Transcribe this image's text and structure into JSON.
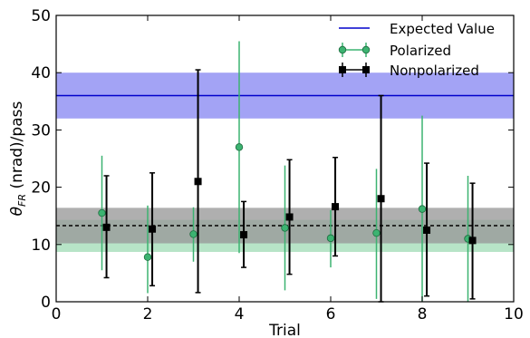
{
  "chart_data": {
    "type": "scatter",
    "xlabel": "Trial",
    "ylabel_symbol": "θ",
    "ylabel_subscript": "FR",
    "ylabel_rest": " (nrad)/pass",
    "xlim": [
      0,
      10
    ],
    "ylim": [
      0,
      50
    ],
    "xticks": [
      "0",
      "2",
      "4",
      "6",
      "8",
      "10"
    ],
    "yticks": [
      "0",
      "10",
      "20",
      "30",
      "40",
      "50"
    ],
    "grid": false,
    "legend_position": "top-right",
    "colors": {
      "expected": "#0000cc",
      "expected_band": "#a3a3f5",
      "polarized": "#3cb371",
      "polarized_band": "#b7e4c7",
      "nonpolarized": "#000000",
      "nonpolarized_band": "#999999"
    },
    "expected_value": {
      "name": "Expected Value",
      "y": 36,
      "band": [
        32,
        40
      ]
    },
    "mean_line": {
      "y": 13.3
    },
    "polarized_band": [
      8.7,
      14.3
    ],
    "nonpolarized_band": [
      10.2,
      16.4
    ],
    "series": [
      {
        "name": "Polarized",
        "x": [
          1,
          2,
          3,
          4,
          5,
          6,
          7,
          8,
          9
        ],
        "y": [
          15.5,
          7.8,
          11.8,
          27,
          12.9,
          11.1,
          12,
          16.2,
          11
        ],
        "yerr_low": [
          5.5,
          1.5,
          7,
          8.5,
          2,
          6,
          0.5,
          0,
          0
        ],
        "yerr_high": [
          25.5,
          16.8,
          16.5,
          45.5,
          23.8,
          16,
          23.2,
          32.5,
          22
        ]
      },
      {
        "name": "Nonpolarized",
        "x": [
          1.1,
          2.1,
          3.1,
          4.1,
          5.1,
          6.1,
          7.1,
          8.1,
          9.1
        ],
        "y": [
          13,
          12.7,
          21,
          11.7,
          14.8,
          16.6,
          18,
          12.5,
          10.7
        ],
        "yerr_low": [
          4.2,
          2.8,
          1.6,
          6,
          4.8,
          8,
          0,
          1,
          0.5
        ],
        "yerr_high": [
          22,
          22.5,
          40.5,
          17.5,
          24.8,
          25.2,
          36,
          24.2,
          20.7
        ]
      }
    ]
  }
}
